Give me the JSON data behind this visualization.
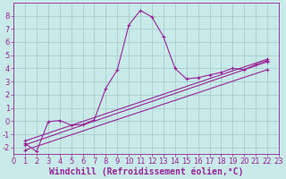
{
  "background_color": "#c8eae8",
  "grid_color": "#a0c8c8",
  "line_color": "#992299",
  "marker": "+",
  "xlabel": "Windchill (Refroidissement éolien,°C)",
  "xlim": [
    0,
    23
  ],
  "ylim": [
    -2.5,
    9.0
  ],
  "xticks": [
    0,
    1,
    2,
    3,
    4,
    5,
    6,
    7,
    8,
    9,
    10,
    11,
    12,
    13,
    14,
    15,
    16,
    17,
    18,
    19,
    20,
    21,
    22,
    23
  ],
  "yticks": [
    -2,
    -1,
    0,
    1,
    2,
    3,
    4,
    5,
    6,
    7,
    8
  ],
  "curve_x": [
    1,
    2,
    3,
    4,
    5,
    6,
    7,
    8,
    9,
    10,
    11,
    12,
    13,
    14,
    15,
    16,
    17,
    18,
    19,
    20,
    21,
    22
  ],
  "curve_y": [
    -1.7,
    -2.3,
    -0.05,
    0.05,
    -0.3,
    -0.25,
    0.1,
    2.5,
    3.9,
    7.3,
    8.4,
    7.9,
    6.4,
    4.0,
    3.2,
    3.3,
    3.5,
    3.7,
    4.0,
    3.9,
    4.3,
    4.6
  ],
  "line1_x": [
    1,
    22
  ],
  "line1_y": [
    -1.8,
    4.5
  ],
  "line2_x": [
    1,
    22
  ],
  "line2_y": [
    -2.2,
    3.9
  ],
  "line3_x": [
    1,
    22
  ],
  "line3_y": [
    -1.5,
    4.7
  ],
  "tick_fontsize": 6,
  "label_fontsize": 7
}
